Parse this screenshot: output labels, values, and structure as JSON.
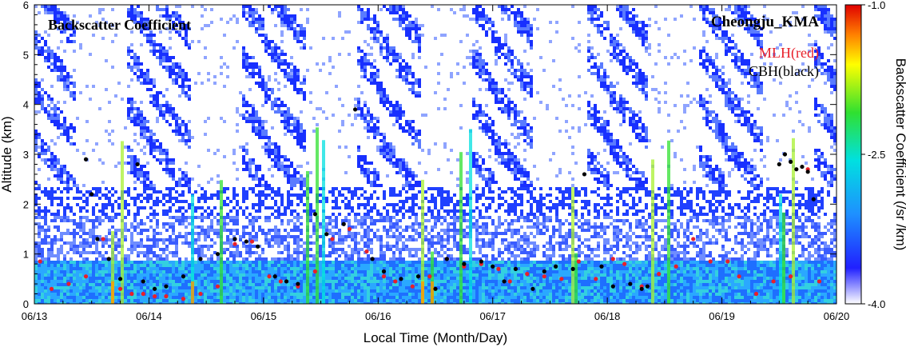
{
  "chart_data": {
    "type": "heatmap",
    "title": "Backscatter Coefficient",
    "site": "Cheongju_KMA",
    "legend": {
      "mlh": {
        "label": "MLH(red)",
        "color": "#e8202a"
      },
      "cbh": {
        "label": "CBH(black)",
        "color": "#000000"
      }
    },
    "xlabel": "Local Time (Month/Day)",
    "ylabel": "Altitude (km)",
    "colorbar_label": "Backscatter Coefficient (/sr /km)",
    "x_ticks": [
      "06/13",
      "06/14",
      "06/15",
      "06/16",
      "06/17",
      "06/18",
      "06/19",
      "06/20"
    ],
    "y_ticks": [
      0,
      1,
      2,
      3,
      4,
      5,
      6
    ],
    "ylim": [
      0,
      6
    ],
    "colorbar_ticks": [
      "-1.0",
      "-2.5",
      "-4.0"
    ],
    "colorbar_range": [
      -4.0,
      -1.0
    ],
    "colorscale": [
      "#ffffff",
      "#1a1aff",
      "#1e90ff",
      "#00e0e0",
      "#30e030",
      "#ffff00",
      "#ff8000",
      "#e00000"
    ],
    "mlh_series": {
      "name": "MLH(red)",
      "x": [
        13.05,
        13.15,
        13.3,
        13.45,
        13.6,
        13.75,
        13.85,
        13.95,
        14.05,
        14.15,
        14.3,
        14.45,
        14.6,
        14.75,
        14.9,
        15.05,
        15.15,
        15.3,
        15.45,
        15.6,
        15.75,
        15.9,
        16.05,
        16.15,
        16.3,
        16.45,
        16.6,
        16.75,
        16.9,
        17.05,
        17.15,
        17.3,
        17.45,
        17.6,
        17.75,
        17.9,
        18.05,
        18.15,
        18.3,
        18.45,
        18.6,
        18.75,
        18.9,
        19.05,
        19.15,
        19.3,
        19.45,
        19.6,
        19.75,
        19.85
      ],
      "y": [
        0.85,
        0.3,
        0.4,
        0.55,
        1.3,
        0.3,
        0.2,
        0.2,
        0.15,
        0.15,
        0.1,
        0.2,
        0.35,
        1.2,
        1.25,
        0.55,
        0.45,
        0.35,
        0.65,
        1.3,
        1.5,
        1.05,
        0.55,
        0.45,
        0.35,
        0.55,
        0.9,
        0.75,
        0.8,
        0.7,
        0.45,
        0.6,
        0.55,
        0.5,
        0.85,
        0.5,
        0.9,
        0.8,
        0.35,
        0.6,
        0.75,
        1.3,
        0.85,
        0.85,
        0.55,
        0.2,
        0.45,
        0.55,
        2.7,
        0.45
      ]
    },
    "cbh_series": {
      "name": "CBH(black)",
      "x": [
        13.45,
        13.5,
        13.55,
        13.65,
        13.75,
        13.9,
        13.95,
        14.05,
        14.15,
        14.3,
        14.45,
        14.6,
        14.75,
        14.85,
        14.95,
        15.1,
        15.2,
        15.3,
        15.45,
        15.55,
        15.7,
        15.8,
        15.95,
        16.05,
        16.2,
        16.35,
        16.5,
        16.6,
        16.75,
        16.9,
        17.0,
        17.1,
        17.2,
        17.35,
        17.45,
        17.55,
        17.7,
        17.8,
        17.95,
        18.05,
        18.2,
        18.3,
        18.35,
        19.5,
        19.55,
        19.6,
        19.65,
        19.7,
        19.75,
        19.8
      ],
      "y": [
        2.9,
        2.2,
        1.3,
        0.9,
        0.5,
        2.8,
        0.45,
        0.3,
        0.35,
        0.55,
        0.9,
        1.0,
        1.3,
        1.25,
        1.15,
        0.55,
        0.45,
        0.4,
        1.8,
        1.4,
        1.6,
        3.9,
        0.9,
        0.65,
        0.5,
        0.55,
        0.3,
        0.9,
        0.8,
        0.85,
        0.75,
        0.45,
        0.7,
        0.3,
        0.65,
        0.75,
        0.7,
        2.6,
        0.75,
        0.35,
        0.4,
        0.3,
        0.35,
        2.8,
        3.0,
        2.85,
        2.7,
        2.75,
        2.65,
        2.1
      ]
    }
  }
}
